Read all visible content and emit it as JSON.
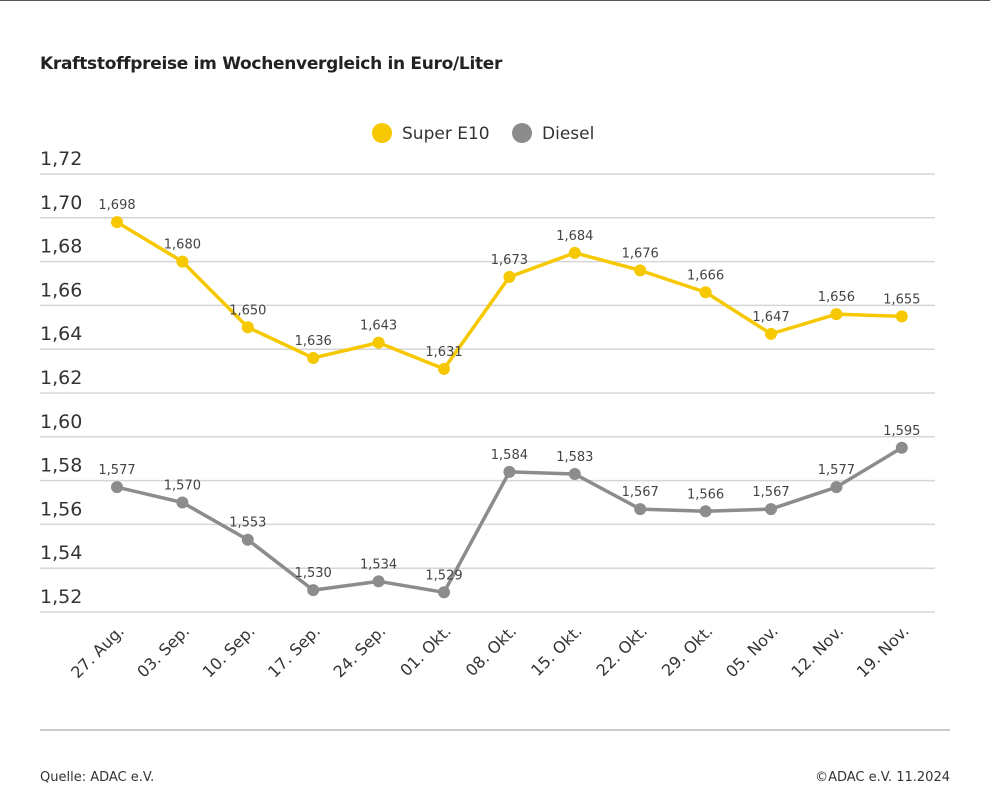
{
  "chart_data": {
    "type": "line",
    "title": "Kraftstoffpreise im Wochenvergleich in Euro/Liter",
    "categories": [
      "27. Aug.",
      "03. Sep.",
      "10. Sep.",
      "17. Sep.",
      "24. Sep.",
      "01. Okt.",
      "08. Okt.",
      "15. Okt.",
      "22. Okt.",
      "29. Okt.",
      "05. Nov.",
      "12. Nov.",
      "19. Nov."
    ],
    "series": [
      {
        "name": "Super E10",
        "color": "#f5c800",
        "values": [
          1.698,
          1.68,
          1.65,
          1.636,
          1.643,
          1.631,
          1.673,
          1.684,
          1.676,
          1.666,
          1.647,
          1.656,
          1.655
        ],
        "labels": [
          "1,698",
          "1,680",
          "1,650",
          "1,636",
          "1,643",
          "1,631",
          "1,673",
          "1,684",
          "1,676",
          "1,666",
          "1,647",
          "1,656",
          "1,655"
        ]
      },
      {
        "name": "Diesel",
        "color": "#8c8c8c",
        "values": [
          1.577,
          1.57,
          1.553,
          1.53,
          1.534,
          1.529,
          1.584,
          1.583,
          1.567,
          1.566,
          1.567,
          1.577,
          1.595
        ],
        "labels": [
          "1,577",
          "1,570",
          "1,553",
          "1,530",
          "1,534",
          "1,529",
          "1,584",
          "1,583",
          "1,567",
          "1,566",
          "1,567",
          "1,577",
          "1,595"
        ]
      }
    ],
    "ylim": [
      1.52,
      1.72
    ],
    "yticks": [
      "1,52",
      "1,54",
      "1,56",
      "1,58",
      "1,60",
      "1,62",
      "1,64",
      "1,66",
      "1,68",
      "1,70",
      "1,72"
    ],
    "grid": true,
    "legend": "top-center"
  },
  "footer": {
    "source": "Quelle: ADAC e.V.",
    "copyright": "©ADAC e.V. 11.2024"
  }
}
